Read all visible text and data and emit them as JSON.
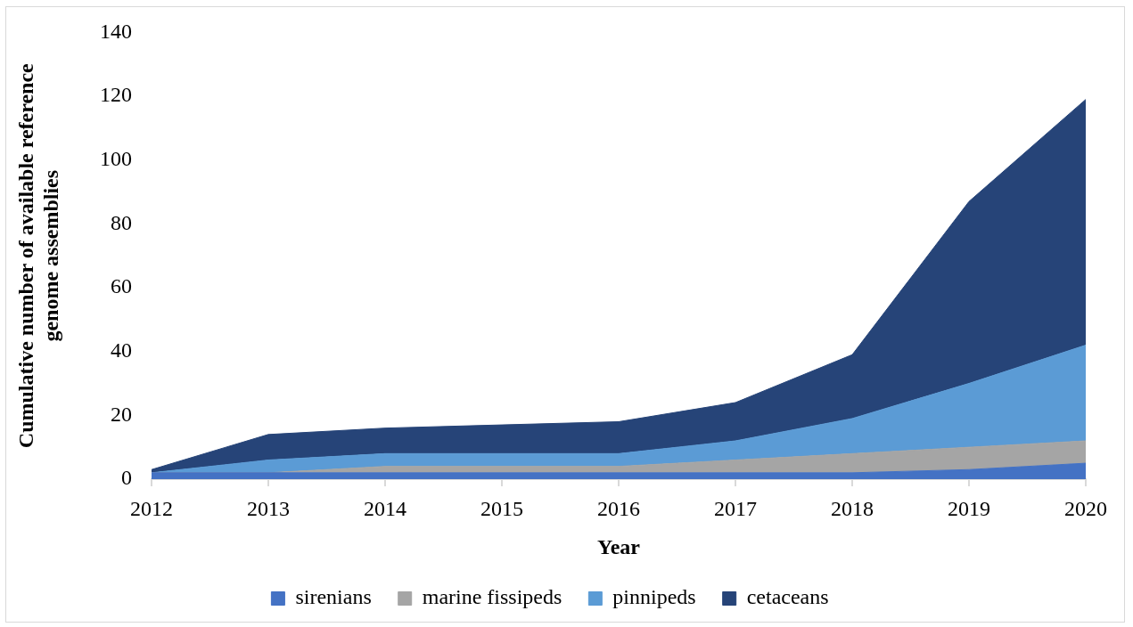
{
  "chart_data": {
    "type": "area",
    "xlabel": "Year",
    "ylabel": "Cumulative number of available reference genome assemblies",
    "categories": [
      "2012",
      "2013",
      "2014",
      "2015",
      "2016",
      "2017",
      "2018",
      "2019",
      "2020"
    ],
    "stacked": true,
    "series": [
      {
        "name": "sirenians",
        "color": "#4472c4",
        "values": [
          2,
          2,
          2,
          2,
          2,
          2,
          2,
          3,
          5
        ]
      },
      {
        "name": "marine fissipeds",
        "color": "#a5a5a5",
        "values": [
          0,
          0,
          2,
          2,
          2,
          4,
          6,
          7,
          7
        ]
      },
      {
        "name": "pinnipeds",
        "color": "#5b9bd5",
        "values": [
          0,
          4,
          4,
          4,
          4,
          6,
          11,
          20,
          30
        ]
      },
      {
        "name": "cetaceans",
        "color": "#264478",
        "values": [
          1,
          8,
          8,
          9,
          10,
          12,
          20,
          57,
          77
        ]
      }
    ],
    "ylim": [
      0,
      140
    ],
    "yticks": [
      0,
      20,
      40,
      60,
      80,
      100,
      120,
      140
    ],
    "legend": "bottom"
  }
}
